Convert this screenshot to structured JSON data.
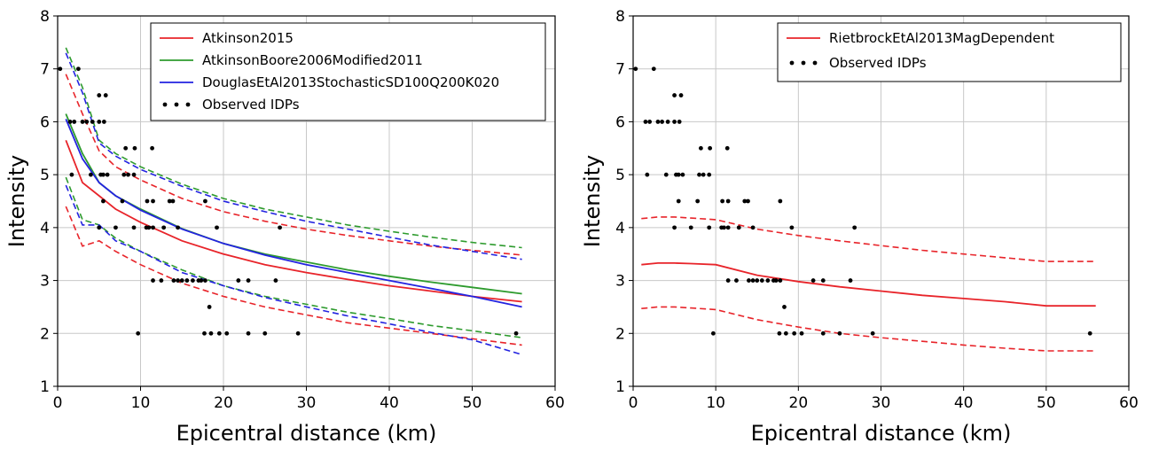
{
  "chart_data": [
    {
      "type": "line",
      "xlabel": "Epicentral distance (km)",
      "ylabel": "Intensity",
      "xlim": [
        0,
        60
      ],
      "ylim": [
        1,
        8
      ],
      "xticks": [
        "0",
        "10",
        "20",
        "30",
        "40",
        "50",
        "60"
      ],
      "yticks": [
        "1",
        "2",
        "3",
        "4",
        "5",
        "6",
        "7",
        "8"
      ],
      "grid": true,
      "legend_position": "top-right",
      "series": [
        {
          "name": "Atkinson2015",
          "color": "#e8242a",
          "style": "solid",
          "x": [
            1,
            3,
            5,
            7,
            10,
            15,
            20,
            25,
            30,
            35,
            40,
            45,
            50,
            56
          ],
          "y": [
            5.65,
            4.85,
            4.6,
            4.35,
            4.1,
            3.75,
            3.5,
            3.3,
            3.15,
            3.02,
            2.9,
            2.8,
            2.7,
            2.6
          ]
        },
        {
          "name": "Atkinson2015 +1σ",
          "color": "#e8242a",
          "style": "dashed",
          "x": [
            1,
            3,
            5,
            7,
            10,
            15,
            20,
            25,
            30,
            35,
            40,
            45,
            50,
            56
          ],
          "y": [
            6.9,
            6.15,
            5.45,
            5.15,
            4.9,
            4.55,
            4.3,
            4.12,
            3.97,
            3.85,
            3.75,
            3.65,
            3.57,
            3.48
          ]
        },
        {
          "name": "Atkinson2015 -1σ",
          "color": "#e8242a",
          "style": "dashed",
          "x": [
            1,
            3,
            5,
            7,
            10,
            15,
            20,
            25,
            30,
            35,
            40,
            45,
            50,
            56
          ],
          "y": [
            4.4,
            3.65,
            3.75,
            3.55,
            3.3,
            2.95,
            2.7,
            2.5,
            2.35,
            2.2,
            2.1,
            2.0,
            1.9,
            1.78
          ]
        },
        {
          "name": "AtkinsonBoore2006Modified2011",
          "color": "#2e9b2e",
          "style": "solid",
          "x": [
            1,
            3,
            5,
            7,
            10,
            15,
            20,
            25,
            30,
            35,
            40,
            45,
            50,
            56
          ],
          "y": [
            6.15,
            5.4,
            4.85,
            4.6,
            4.35,
            3.98,
            3.7,
            3.5,
            3.35,
            3.2,
            3.08,
            2.97,
            2.87,
            2.75
          ]
        },
        {
          "name": "AtkinsonBoore2006Modified2011 +1σ",
          "color": "#2e9b2e",
          "style": "dashed",
          "x": [
            1,
            3,
            5,
            7,
            10,
            15,
            20,
            25,
            30,
            35,
            40,
            45,
            50,
            56
          ],
          "y": [
            7.4,
            6.65,
            5.65,
            5.4,
            5.15,
            4.82,
            4.55,
            4.35,
            4.2,
            4.05,
            3.93,
            3.82,
            3.72,
            3.62
          ]
        },
        {
          "name": "AtkinsonBoore2006Modified2011 -1σ",
          "color": "#2e9b2e",
          "style": "dashed",
          "x": [
            1,
            3,
            5,
            7,
            10,
            15,
            20,
            25,
            30,
            35,
            40,
            45,
            50,
            56
          ],
          "y": [
            4.95,
            4.15,
            4.05,
            3.8,
            3.55,
            3.2,
            2.9,
            2.7,
            2.55,
            2.4,
            2.28,
            2.15,
            2.05,
            1.92
          ]
        },
        {
          "name": "DouglasEtAl2013StochasticSD100Q200K020",
          "color": "#2323e0",
          "style": "solid",
          "x": [
            1,
            3,
            5,
            7,
            10,
            15,
            20,
            25,
            30,
            35,
            40,
            45,
            50,
            56
          ],
          "y": [
            6.05,
            5.3,
            4.85,
            4.6,
            4.33,
            3.97,
            3.7,
            3.48,
            3.3,
            3.15,
            3.0,
            2.85,
            2.7,
            2.5
          ]
        },
        {
          "name": "DouglasEtAl2013StochasticSD100Q200K020 +1σ",
          "color": "#2323e0",
          "style": "dashed",
          "x": [
            1,
            3,
            5,
            7,
            10,
            15,
            20,
            25,
            30,
            35,
            40,
            45,
            50,
            56
          ],
          "y": [
            7.3,
            6.55,
            5.6,
            5.35,
            5.1,
            4.78,
            4.5,
            4.3,
            4.12,
            3.97,
            3.82,
            3.67,
            3.55,
            3.4
          ]
        },
        {
          "name": "DouglasEtAl2013StochasticSD100Q200K020 -1σ",
          "color": "#2323e0",
          "style": "dashed",
          "x": [
            1,
            3,
            5,
            7,
            10,
            15,
            20,
            25,
            30,
            35,
            40,
            45,
            50,
            56
          ],
          "y": [
            4.8,
            4.05,
            4.05,
            3.75,
            3.55,
            3.15,
            2.9,
            2.68,
            2.5,
            2.33,
            2.18,
            2.02,
            1.88,
            1.6
          ]
        }
      ],
      "scatter": {
        "name": "Observed IDPs",
        "color": "#000000",
        "points": [
          [
            0.3,
            7
          ],
          [
            2.5,
            7
          ],
          [
            1.5,
            6
          ],
          [
            2,
            6
          ],
          [
            3,
            6
          ],
          [
            3.5,
            6
          ],
          [
            4.2,
            6
          ],
          [
            5,
            6
          ],
          [
            5.6,
            6
          ],
          [
            5,
            6.5
          ],
          [
            5.8,
            6.5
          ],
          [
            1.7,
            5
          ],
          [
            4,
            5
          ],
          [
            5.2,
            5
          ],
          [
            5.5,
            5
          ],
          [
            6,
            5
          ],
          [
            8,
            5
          ],
          [
            8.5,
            5
          ],
          [
            9.2,
            5
          ],
          [
            8.2,
            5.5
          ],
          [
            9.3,
            5.5
          ],
          [
            11.4,
            5.5
          ],
          [
            5.5,
            4.5
          ],
          [
            7.8,
            4.5
          ],
          [
            10.8,
            4.5
          ],
          [
            11.5,
            4.5
          ],
          [
            13.5,
            4.5
          ],
          [
            13.9,
            4.5
          ],
          [
            17.8,
            4.5
          ],
          [
            5,
            4
          ],
          [
            7,
            4
          ],
          [
            9.2,
            4
          ],
          [
            10.7,
            4
          ],
          [
            11,
            4
          ],
          [
            11.5,
            4
          ],
          [
            12.8,
            4
          ],
          [
            14.5,
            4
          ],
          [
            19.2,
            4
          ],
          [
            26.8,
            4
          ],
          [
            11.5,
            3
          ],
          [
            12.5,
            3
          ],
          [
            14,
            3
          ],
          [
            14.5,
            3
          ],
          [
            15,
            3
          ],
          [
            15.6,
            3
          ],
          [
            16.3,
            3
          ],
          [
            17,
            3
          ],
          [
            17.3,
            3
          ],
          [
            17.8,
            3
          ],
          [
            21.8,
            3
          ],
          [
            23,
            3
          ],
          [
            26.3,
            3
          ],
          [
            18.3,
            2.5
          ],
          [
            9.7,
            2
          ],
          [
            17.7,
            2
          ],
          [
            18.5,
            2
          ],
          [
            19.5,
            2
          ],
          [
            20.4,
            2
          ],
          [
            23,
            2
          ],
          [
            25,
            2
          ],
          [
            29,
            2
          ],
          [
            55.3,
            2
          ]
        ]
      }
    },
    {
      "type": "line",
      "xlabel": "Epicentral distance (km)",
      "ylabel": "Intensity",
      "xlim": [
        0,
        60
      ],
      "ylim": [
        1,
        8
      ],
      "xticks": [
        "0",
        "10",
        "20",
        "30",
        "40",
        "50",
        "60"
      ],
      "yticks": [
        "1",
        "2",
        "3",
        "4",
        "5",
        "6",
        "7",
        "8"
      ],
      "grid": true,
      "legend_position": "top-right",
      "series": [
        {
          "name": "RietbrockEtAl2013MagDependent",
          "color": "#e8242a",
          "style": "solid",
          "x": [
            1,
            3,
            5,
            7,
            10,
            15,
            20,
            25,
            30,
            35,
            40,
            45,
            50,
            56
          ],
          "y": [
            3.3,
            3.33,
            3.33,
            3.32,
            3.3,
            3.1,
            2.98,
            2.88,
            2.8,
            2.72,
            2.66,
            2.6,
            2.52,
            2.52
          ]
        },
        {
          "name": "RietbrockEtAl2013MagDependent +1σ",
          "color": "#e8242a",
          "style": "dashed",
          "x": [
            1,
            3,
            5,
            7,
            10,
            15,
            20,
            25,
            30,
            35,
            40,
            45,
            50,
            56
          ],
          "y": [
            4.17,
            4.2,
            4.2,
            4.18,
            4.15,
            3.97,
            3.85,
            3.75,
            3.66,
            3.57,
            3.5,
            3.43,
            3.36,
            3.36
          ]
        },
        {
          "name": "RietbrockEtAl2013MagDependent -1σ",
          "color": "#e8242a",
          "style": "dashed",
          "x": [
            1,
            3,
            5,
            7,
            10,
            15,
            20,
            25,
            30,
            35,
            40,
            45,
            50,
            56
          ],
          "y": [
            2.47,
            2.5,
            2.5,
            2.48,
            2.45,
            2.26,
            2.12,
            2.0,
            1.92,
            1.85,
            1.78,
            1.72,
            1.67,
            1.67
          ]
        }
      ],
      "scatter": {
        "name": "Observed IDPs",
        "color": "#000000",
        "points": [
          [
            0.3,
            7
          ],
          [
            2.5,
            7
          ],
          [
            1.5,
            6
          ],
          [
            2,
            6
          ],
          [
            3,
            6
          ],
          [
            3.5,
            6
          ],
          [
            4.2,
            6
          ],
          [
            5,
            6
          ],
          [
            5.6,
            6
          ],
          [
            5,
            6.5
          ],
          [
            5.8,
            6.5
          ],
          [
            1.7,
            5
          ],
          [
            4,
            5
          ],
          [
            5.2,
            5
          ],
          [
            5.5,
            5
          ],
          [
            6,
            5
          ],
          [
            8,
            5
          ],
          [
            8.5,
            5
          ],
          [
            9.2,
            5
          ],
          [
            8.2,
            5.5
          ],
          [
            9.3,
            5.5
          ],
          [
            11.4,
            5.5
          ],
          [
            5.5,
            4.5
          ],
          [
            7.8,
            4.5
          ],
          [
            10.8,
            4.5
          ],
          [
            11.5,
            4.5
          ],
          [
            13.5,
            4.5
          ],
          [
            13.9,
            4.5
          ],
          [
            17.8,
            4.5
          ],
          [
            5,
            4
          ],
          [
            7,
            4
          ],
          [
            9.2,
            4
          ],
          [
            10.7,
            4
          ],
          [
            11,
            4
          ],
          [
            11.5,
            4
          ],
          [
            12.8,
            4
          ],
          [
            14.5,
            4
          ],
          [
            19.2,
            4
          ],
          [
            26.8,
            4
          ],
          [
            11.5,
            3
          ],
          [
            12.5,
            3
          ],
          [
            14,
            3
          ],
          [
            14.5,
            3
          ],
          [
            15,
            3
          ],
          [
            15.6,
            3
          ],
          [
            16.3,
            3
          ],
          [
            17,
            3
          ],
          [
            17.3,
            3
          ],
          [
            17.8,
            3
          ],
          [
            21.8,
            3
          ],
          [
            23,
            3
          ],
          [
            26.3,
            3
          ],
          [
            18.3,
            2.5
          ],
          [
            9.7,
            2
          ],
          [
            17.7,
            2
          ],
          [
            18.5,
            2
          ],
          [
            19.5,
            2
          ],
          [
            20.4,
            2
          ],
          [
            23,
            2
          ],
          [
            25,
            2
          ],
          [
            29,
            2
          ],
          [
            55.3,
            2
          ]
        ]
      }
    }
  ],
  "legends": [
    {
      "entries": [
        {
          "label": "Atkinson2015",
          "color": "#e8242a",
          "kind": "line"
        },
        {
          "label": "AtkinsonBoore2006Modified2011",
          "color": "#2e9b2e",
          "kind": "line"
        },
        {
          "label": "DouglasEtAl2013StochasticSD100Q200K020",
          "color": "#2323e0",
          "kind": "line"
        },
        {
          "label": "Observed IDPs",
          "color": "#000000",
          "kind": "dots"
        }
      ]
    },
    {
      "entries": [
        {
          "label": "RietbrockEtAl2013MagDependent",
          "color": "#e8242a",
          "kind": "line"
        },
        {
          "label": "Observed IDPs",
          "color": "#000000",
          "kind": "dots"
        }
      ]
    }
  ]
}
